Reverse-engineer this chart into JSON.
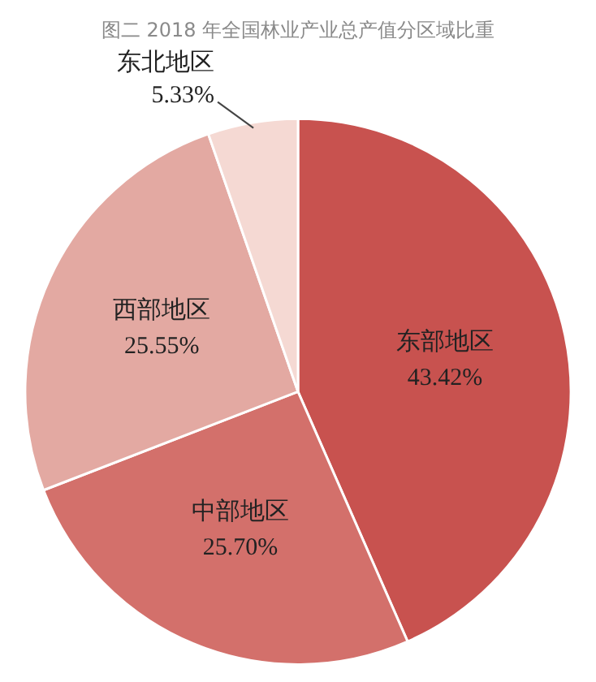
{
  "chart_data": {
    "type": "pie",
    "title": "图二 2018 年全国林业产业总产值分区域比重",
    "categories": [
      "东部地区",
      "中部地区",
      "西部地区",
      "东北地区"
    ],
    "values": [
      43.42,
      25.7,
      25.55,
      5.33
    ],
    "value_labels": [
      "43.42%",
      "25.70%",
      "25.55%",
      "5.33%"
    ],
    "colors": [
      "#c8524f",
      "#d3706b",
      "#e3a9a2",
      "#f5d9d3"
    ],
    "legend": false
  }
}
